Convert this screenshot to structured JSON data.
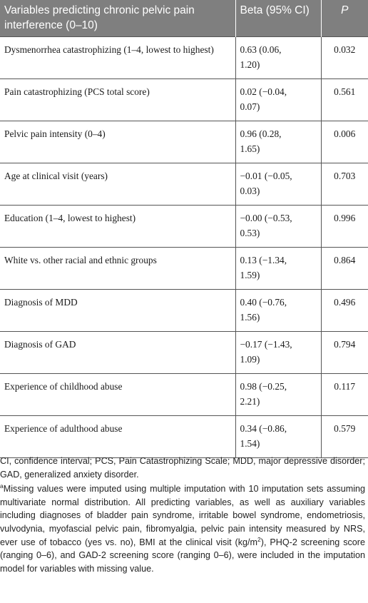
{
  "table": {
    "headers": {
      "variable": "Variables predicting chronic pelvic pain interference (0–10)",
      "beta": "Beta (95% CI)",
      "p": "P"
    },
    "rows": [
      {
        "variable": "Dysmenorrhea catastrophizing (1–4, lowest to highest)",
        "beta_line1": "0.63 (0.06,",
        "beta_line2": "1.20)",
        "p": "0.032"
      },
      {
        "variable": "Pain catastrophizing (PCS total score)",
        "beta_line1": "0.02 (−0.04,",
        "beta_line2": "0.07)",
        "p": "0.561"
      },
      {
        "variable": "Pelvic pain intensity (0–4)",
        "beta_line1": "0.96 (0.28,",
        "beta_line2": "1.65)",
        "p": "0.006"
      },
      {
        "variable": "Age at clinical visit (years)",
        "beta_line1": "−0.01 (−0.05,",
        "beta_line2": "0.03)",
        "p": "0.703"
      },
      {
        "variable": "Education (1–4, lowest to highest)",
        "beta_line1": "−0.00 (−0.53,",
        "beta_line2": "0.53)",
        "p": "0.996"
      },
      {
        "variable": "White vs. other racial and ethnic groups",
        "beta_line1": "0.13 (−1.34,",
        "beta_line2": "1.59)",
        "p": "0.864"
      },
      {
        "variable": "Diagnosis of MDD",
        "beta_line1": "0.40 (−0.76,",
        "beta_line2": "1.56)",
        "p": "0.496"
      },
      {
        "variable": "Diagnosis of GAD",
        "beta_line1": "−0.17 (−1.43,",
        "beta_line2": "1.09)",
        "p": "0.794"
      },
      {
        "variable": "Experience of childhood abuse",
        "beta_line1": "0.98 (−0.25,",
        "beta_line2": "2.21)",
        "p": "0.117"
      },
      {
        "variable": "Experience of adulthood abuse",
        "beta_line1": "0.34 (−0.86,",
        "beta_line2": "1.54)",
        "p": "0.579"
      }
    ]
  },
  "footnotes": {
    "abbreviations": "CI, confidence interval; PCS, Pain Catastrophizing Scale; MDD, major depressive disorder; GAD, generalized anxiety disorder.",
    "note_marker": "a",
    "note_part1": "Missing values were imputed using multiple imputation with 10 imputation sets assuming multivariate normal distribution. All predicting variables, as well as auxiliary variables including diagnoses of bladder pain syndrome, irritable bowel syndrome, endometriosis, vulvodynia, myofascial pelvic pain, fibromyalgia, pelvic pain intensity measured by NRS, ever use of tobacco (yes vs. no), BMI at the clinical visit (kg/m",
    "note_superscript": "2",
    "note_part2": "), PHQ-2 screening score (ranging 0–6), and GAD-2 screening score (ranging 0–6), were included in the imputation model for variables with missing value."
  }
}
